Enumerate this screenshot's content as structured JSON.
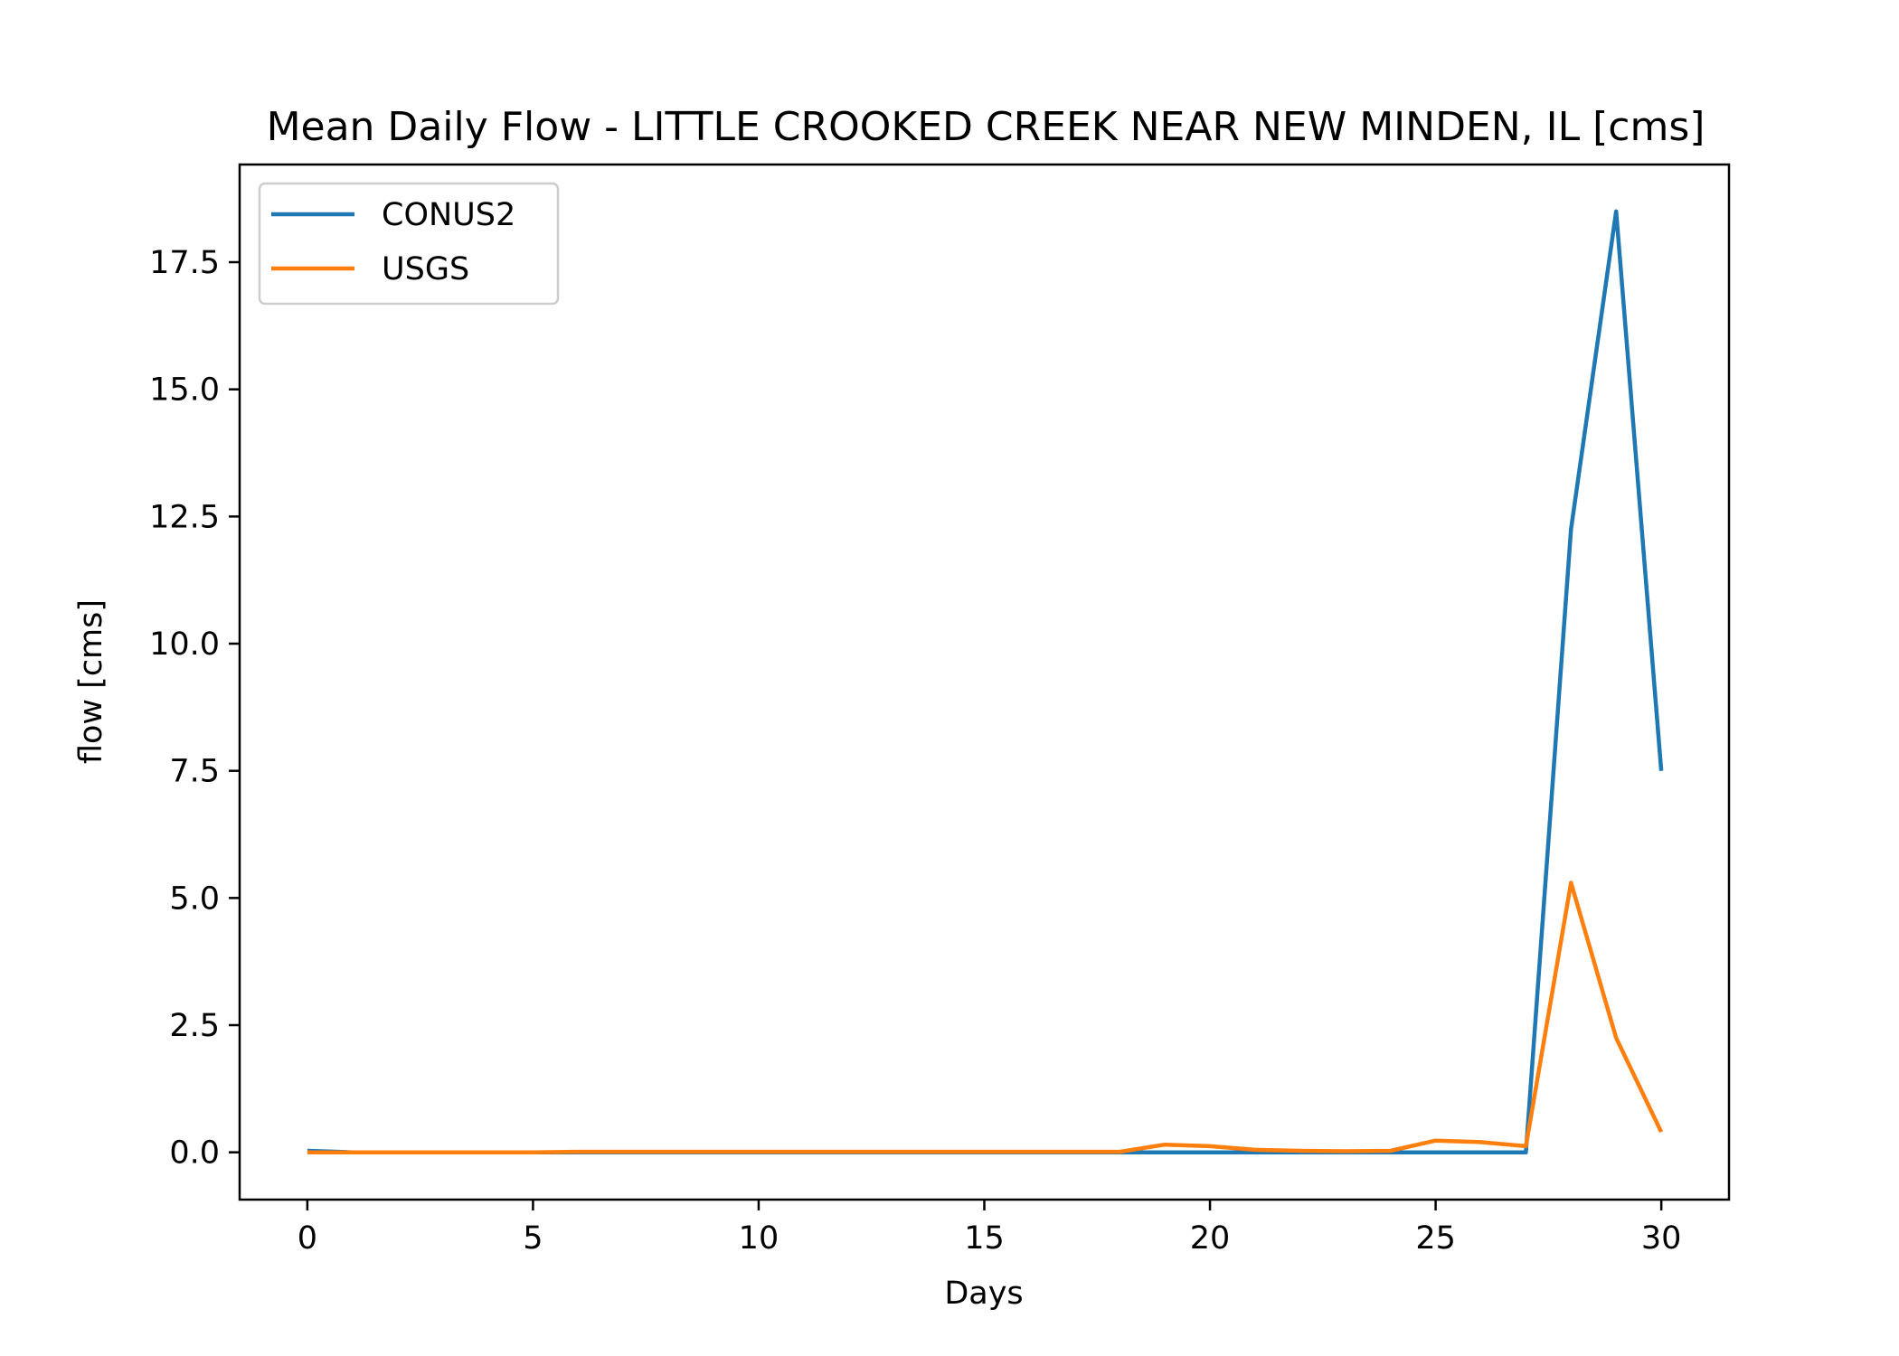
{
  "chart_data": {
    "type": "line",
    "title": "Mean Daily Flow - LITTLE CROOKED CREEK NEAR NEW MINDEN, IL [cms]",
    "xlabel": "Days",
    "ylabel": "flow [cms]",
    "xlim": [
      -1.5,
      31.5
    ],
    "ylim": [
      -0.93,
      19.42
    ],
    "xticks": [
      0,
      5,
      10,
      15,
      20,
      25,
      30
    ],
    "xtick_labels": [
      "0",
      "5",
      "10",
      "15",
      "20",
      "25",
      "30"
    ],
    "yticks": [
      0.0,
      2.5,
      5.0,
      7.5,
      10.0,
      12.5,
      15.0,
      17.5
    ],
    "ytick_labels": [
      "0.0",
      "2.5",
      "5.0",
      "7.5",
      "10.0",
      "12.5",
      "15.0",
      "17.5"
    ],
    "grid": false,
    "legend_position": "upper-left",
    "x": [
      0,
      1,
      2,
      3,
      4,
      5,
      6,
      7,
      8,
      9,
      10,
      11,
      12,
      13,
      14,
      15,
      16,
      17,
      18,
      19,
      20,
      21,
      22,
      23,
      24,
      25,
      26,
      27,
      28,
      29,
      30
    ],
    "series": [
      {
        "name": "CONUS2",
        "color": "#1f77b4",
        "values": [
          0.03,
          0.0,
          0.0,
          0.0,
          0.0,
          0.0,
          0.0,
          0.0,
          0.0,
          0.0,
          0.0,
          0.0,
          0.0,
          0.0,
          0.0,
          0.0,
          0.0,
          0.0,
          0.0,
          0.0,
          0.0,
          0.0,
          0.0,
          0.0,
          0.0,
          0.0,
          0.0,
          0.0,
          12.25,
          18.5,
          7.5
        ]
      },
      {
        "name": "USGS",
        "color": "#ff7f0e",
        "values": [
          0.0,
          0.0,
          0.0,
          0.0,
          0.0,
          0.0,
          0.01,
          0.01,
          0.01,
          0.01,
          0.01,
          0.01,
          0.01,
          0.01,
          0.01,
          0.01,
          0.01,
          0.01,
          0.01,
          0.15,
          0.12,
          0.05,
          0.03,
          0.02,
          0.03,
          0.23,
          0.2,
          0.12,
          5.3,
          2.25,
          0.4
        ]
      }
    ]
  }
}
